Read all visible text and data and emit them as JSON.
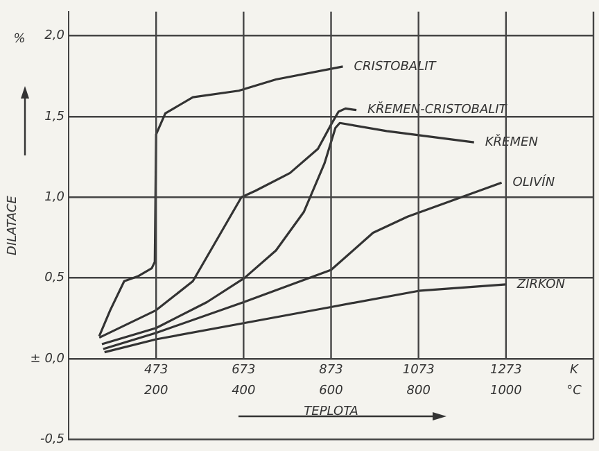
{
  "chart_data": {
    "type": "line",
    "xlabel": "TEPLOTA",
    "ylabel": "DILATACE",
    "annotations": [
      "%",
      "K",
      "°C"
    ],
    "xlim": [
      273,
      1473
    ],
    "xticks": [
      473,
      673,
      873,
      1073,
      1273
    ],
    "x2lim": [
      0,
      1200
    ],
    "x2ticks": [
      200,
      400,
      600,
      800,
      1000
    ],
    "ylim": [
      -0.5,
      2.15
    ],
    "yticks": [
      {
        "value": -0.5,
        "label": "-0,5"
      },
      {
        "value": 0,
        "label": "± 0,0"
      },
      {
        "value": 0.5,
        "label": "0,5"
      },
      {
        "value": 1,
        "label": "1,0"
      },
      {
        "value": 1.5,
        "label": "1,5"
      },
      {
        "value": 2,
        "label": "2,0"
      }
    ],
    "grid": true,
    "legend": false,
    "marker": "none",
    "line_style": "solid",
    "series": [
      {
        "name": "CRISTOBALIT",
        "color": "#333333",
        "x": [
          343,
          368,
          400,
          431,
          463,
          470,
          473,
          494,
          557,
          662,
          747,
          900
        ],
        "values": [
          0.14,
          0.3,
          0.48,
          0.51,
          0.56,
          0.6,
          1.39,
          1.52,
          1.62,
          1.66,
          1.73,
          1.81
        ]
      },
      {
        "name": "KŘEMEN-CRISTOBALIT",
        "color": "#333333",
        "x": [
          343,
          473,
          557,
          621,
          668,
          700,
          779,
          843,
          873,
          890,
          906,
          931
        ],
        "values": [
          0.13,
          0.3,
          0.48,
          0.78,
          1.0,
          1.04,
          1.15,
          1.3,
          1.45,
          1.53,
          1.55,
          1.54
        ]
      },
      {
        "name": "KŘEMEN",
        "color": "#333333",
        "x": [
          349,
          473,
          589,
          675,
          747,
          811,
          858,
          883,
          893,
          1000,
          1200
        ],
        "values": [
          0.09,
          0.19,
          0.35,
          0.5,
          0.67,
          0.91,
          1.21,
          1.43,
          1.46,
          1.41,
          1.34
        ]
      },
      {
        "name": "OLIVÍN",
        "color": "#333333",
        "x": [
          352,
          473,
          673,
          873,
          969,
          1048,
          1263
        ],
        "values": [
          0.06,
          0.16,
          0.35,
          0.55,
          0.78,
          0.88,
          1.09
        ]
      },
      {
        "name": "ZIRKON",
        "color": "#333333",
        "x": [
          355,
          473,
          673,
          873,
          1073,
          1273
        ],
        "values": [
          0.04,
          0.12,
          0.22,
          0.32,
          0.42,
          0.46
        ]
      }
    ]
  }
}
